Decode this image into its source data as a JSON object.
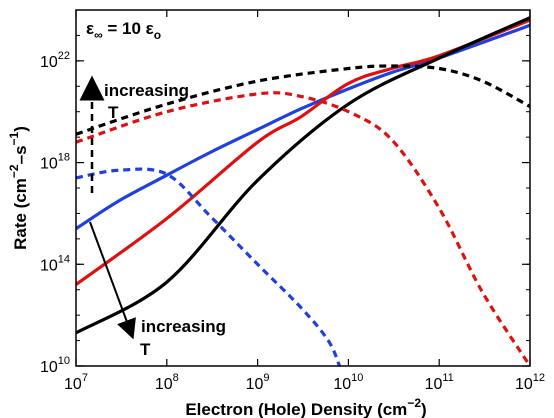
{
  "chart_data": {
    "type": "line",
    "annotation_top": {
      "base": "ε",
      "base_sub": "∞",
      "mid": " = 10 ",
      "tail": "ε",
      "tail_sub": "o"
    },
    "xlabel": {
      "pre": "Electron (Hole) Density (cm",
      "sup": "−2",
      "post": ")"
    },
    "ylabel": {
      "pre": "Rate (cm",
      "sup1": "−2",
      "mid": "–s",
      "sup2": "−1",
      "post": ")"
    },
    "x_scale": "log",
    "y_scale": "log",
    "xlim": [
      10000000.0,
      1000000000000.0
    ],
    "ylim": [
      10000000000.0,
      1e+24
    ],
    "x_ticks": [
      {
        "base": "10",
        "exp": "7",
        "value": 10000000.0
      },
      {
        "base": "10",
        "exp": "8",
        "value": 100000000.0
      },
      {
        "base": "10",
        "exp": "9",
        "value": 1000000000.0
      },
      {
        "base": "10",
        "exp": "10",
        "value": 10000000000.0
      },
      {
        "base": "10",
        "exp": "11",
        "value": 100000000000.0
      },
      {
        "base": "10",
        "exp": "12",
        "value": 1000000000000.0
      }
    ],
    "y_ticks": [
      {
        "base": "10",
        "exp": "10",
        "value": 10000000000.0
      },
      {
        "base": "10",
        "exp": "14",
        "value": 100000000000000.0
      },
      {
        "base": "10",
        "exp": "18",
        "value": 1e+18
      },
      {
        "base": "10",
        "exp": "22",
        "value": 1e+22
      }
    ],
    "annotations": [
      {
        "text1": "increasing",
        "text2": "T",
        "position": "upper-left",
        "arrow": "up"
      },
      {
        "text1": "increasing",
        "text2": "T",
        "position": "lower-left",
        "arrow": "down"
      }
    ],
    "grid": false,
    "series": [
      {
        "style": "solid",
        "color": "#1f3fe0",
        "x": [
          10000000.0,
          30000000.0,
          100000000.0,
          300000000.0,
          1000000000.0,
          3000000000.0,
          10000000000.0,
          30000000000.0,
          100000000000.0,
          1000000000000.0
        ],
        "y": [
          2500000000000000.0,
          3.2e+16,
          3.2e+17,
          2.5e+18,
          2e+19,
          1.3e+20,
          7.9e+20,
          3.5e+21,
          1.3e+22,
          2.5e+23
        ]
      },
      {
        "style": "solid",
        "color": "#e01010",
        "x": [
          10000000.0,
          100000000.0,
          1000000000.0,
          3000000000.0,
          10000000000.0,
          30000000000.0,
          100000000000.0,
          1000000000000.0
        ],
        "y": [
          16000000000000.0,
          6300000000000000.0,
          6.3e+18,
          6.3e+19,
          1.3e+21,
          5e+21,
          1.6e+22,
          4e+23
        ]
      },
      {
        "style": "solid",
        "color": "#000000",
        "x": [
          10000000.0,
          100000000.0,
          1000000000.0,
          10000000000.0,
          100000000000.0,
          1000000000000.0
        ],
        "y": [
          200000000000.0,
          20000000000000.0,
          2e+17,
          2e+20,
          1.3e+22,
          5e+23
        ]
      },
      {
        "style": "dashed",
        "color": "#1f3fe0",
        "x": [
          10000000.0,
          30000000.0,
          100000000.0,
          300000000.0,
          1000000000.0,
          3000000000.0,
          6000000000.0,
          8000000000.0
        ],
        "y": [
          2.5e+17,
          5e+17,
          3.5e+17,
          7900000000000000.0,
          100000000000000.0,
          2000000000000.0,
          100000000000.0,
          10000000000.0
        ]
      },
      {
        "style": "dashed",
        "color": "#e01010",
        "x": [
          10000000.0,
          100000000.0,
          1000000000.0,
          3000000000.0,
          10000000000.0,
          30000000000.0,
          100000000000.0,
          300000000000.0,
          1000000000000.0
        ],
        "y": [
          6.3e+18,
          1e+20,
          5e+20,
          4e+20,
          1e+20,
          7.9e+18,
          1.6e+16,
          7900000000000.0,
          10000000000.0
        ]
      },
      {
        "style": "dashed",
        "color": "#000000",
        "x": [
          10000000.0,
          100000000.0,
          1000000000.0,
          10000000000.0,
          30000000000.0,
          100000000000.0,
          300000000000.0,
          1000000000000.0
        ],
        "y": [
          1.3e+19,
          2e+20,
          1.6e+21,
          5e+21,
          6.3e+21,
          5e+21,
          1.6e+21,
          1.6e+20
        ]
      }
    ]
  }
}
